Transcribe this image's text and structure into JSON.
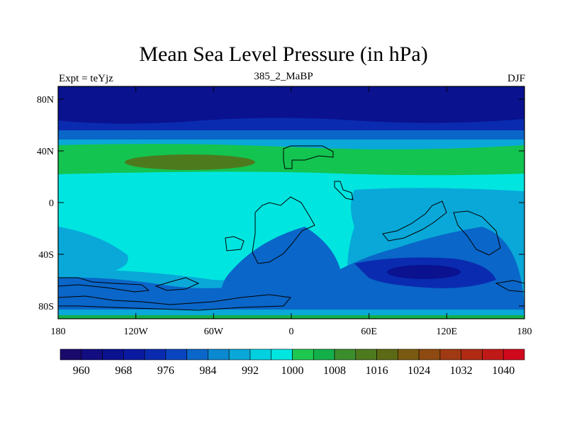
{
  "title": "Mean Sea Level Pressure (in hPa)",
  "subtitle": "385_2_MaBP",
  "left_label": "Expt = teYjz",
  "right_label": "DJF",
  "lat_ticks": [
    "80N",
    "40N",
    "0",
    "40S",
    "80S"
  ],
  "lon_ticks": [
    "180",
    "120W",
    "60W",
    "0",
    "60E",
    "120E",
    "180"
  ],
  "colorbar": {
    "labels": [
      "960",
      "968",
      "976",
      "984",
      "992",
      "1000",
      "1008",
      "1016",
      "1024",
      "1032",
      "1040"
    ],
    "colors": [
      "#1a0a6b",
      "#120d80",
      "#0a1290",
      "#0a1aa0",
      "#0a2bb0",
      "#0a45c0",
      "#0a66c8",
      "#0a88d0",
      "#09a8d8",
      "#00d0e0",
      "#00e5e0",
      "#1ec850",
      "#13b04a",
      "#3c8e2d",
      "#4e7a1e",
      "#5c6a15",
      "#7a5a10",
      "#8e4a10",
      "#a03a12",
      "#b02a14",
      "#c01a18",
      "#d00a1c"
    ]
  },
  "map_colors": {
    "deep_low": "#0a1290",
    "low": "#0a2bb0",
    "mid_low": "#0a66c8",
    "light_blue": "#09a8d8",
    "cyan": "#00e5e0",
    "green": "#13c450",
    "dark_green": "#4e7a1e"
  }
}
